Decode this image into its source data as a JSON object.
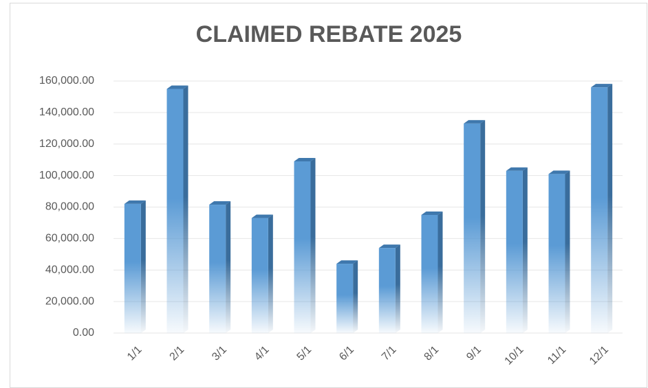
{
  "chart_data": {
    "type": "bar",
    "title": "CLAIMED REBATE 2025",
    "categories": [
      "1/1",
      "2/1",
      "3/1",
      "4/1",
      "5/1",
      "6/1",
      "7/1",
      "8/1",
      "9/1",
      "10/1",
      "11/1",
      "12/1"
    ],
    "values": [
      82000,
      155000,
      81500,
      73000,
      109000,
      44000,
      54000,
      75000,
      133000,
      103000,
      101000,
      156000
    ],
    "color": "#5b9bd5",
    "ylim": [
      0,
      160000
    ],
    "yticks": [
      {
        "value": 0,
        "label": "0.00"
      },
      {
        "value": 20000,
        "label": "20,000.00"
      },
      {
        "value": 40000,
        "label": "40,000.00"
      },
      {
        "value": 60000,
        "label": "60,000.00"
      },
      {
        "value": 80000,
        "label": "80,000.00"
      },
      {
        "value": 100000,
        "label": "100,000.00"
      },
      {
        "value": 120000,
        "label": "120,000.00"
      },
      {
        "value": 140000,
        "label": "140,000.00"
      },
      {
        "value": 160000,
        "label": "160,000.00"
      }
    ],
    "grid": true
  }
}
